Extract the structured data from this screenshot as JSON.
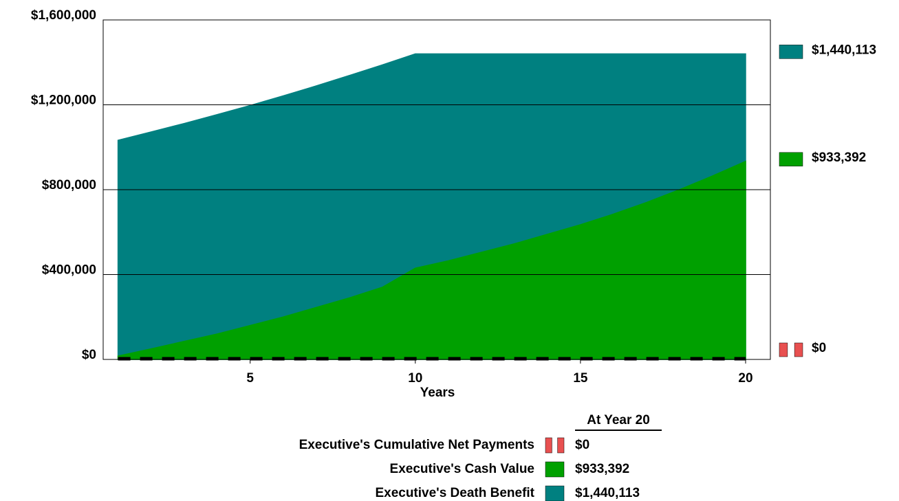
{
  "chart_data": {
    "type": "area",
    "x_label": "Years",
    "legend_title": "At Year 20",
    "x": [
      1,
      2,
      3,
      4,
      5,
      6,
      7,
      8,
      9,
      10,
      11,
      12,
      13,
      14,
      15,
      16,
      17,
      18,
      19,
      20
    ],
    "xlim": [
      0.55,
      20.75
    ],
    "xticks": [
      5,
      10,
      15,
      20
    ],
    "ylim": [
      0,
      1600000
    ],
    "yticks": [
      {
        "value": 0,
        "label": "$0"
      },
      {
        "value": 400000,
        "label": "$400,000"
      },
      {
        "value": 800000,
        "label": "$800,000"
      },
      {
        "value": 1200000,
        "label": "$1,200,000"
      },
      {
        "value": 1600000,
        "label": "$1,600,000"
      }
    ],
    "grid": true,
    "series": [
      {
        "name": "Executive's Cumulative Net Payments",
        "color": "#e85050",
        "line_color": "#000000",
        "style": "dashed",
        "values": [
          0,
          0,
          0,
          0,
          0,
          0,
          0,
          0,
          0,
          0,
          0,
          0,
          0,
          0,
          0,
          0,
          0,
          0,
          0,
          0
        ],
        "last_label": "$0"
      },
      {
        "name": "Executive's Cash Value",
        "color": "#00a000",
        "style": "area",
        "values": [
          16000,
          50000,
          85000,
          120000,
          160000,
          200000,
          245000,
          290000,
          340000,
          430000,
          465000,
          505000,
          545000,
          590000,
          635000,
          685000,
          740000,
          800000,
          865000,
          933392
        ],
        "last_label": "$933,392"
      },
      {
        "name": "Executive's Death Benefit",
        "color": "#008080",
        "style": "area",
        "values": [
          1033000,
          1072000,
          1112000,
          1154000,
          1197000,
          1242000,
          1289000,
          1338000,
          1388000,
          1440113,
          1440113,
          1440113,
          1440113,
          1440113,
          1440113,
          1440113,
          1440113,
          1440113,
          1440113,
          1440113
        ],
        "last_label": "$1,440,113"
      }
    ]
  }
}
